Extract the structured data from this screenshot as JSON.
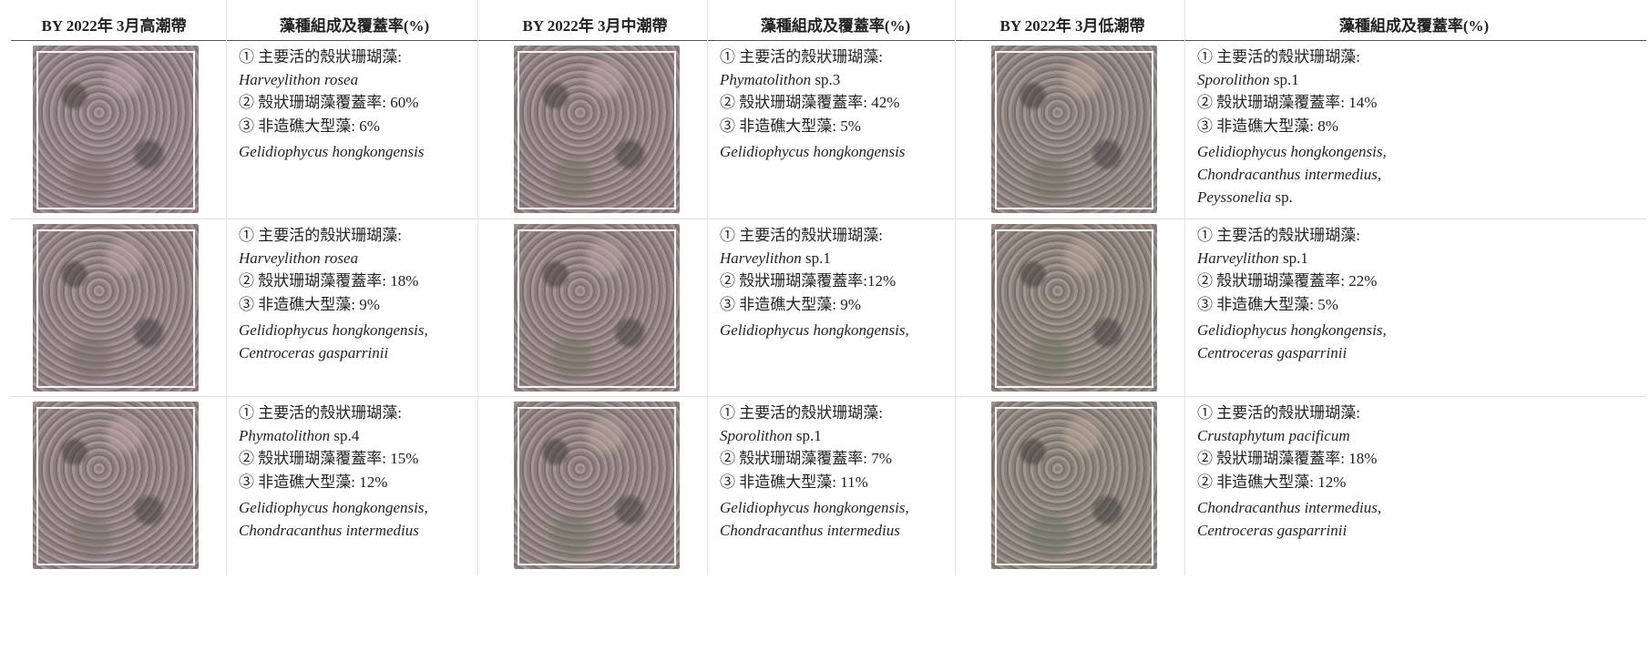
{
  "panels": [
    {
      "header": {
        "site": "BY 2022年 3月高潮帶",
        "composition": "藻種組成及覆蓋率(%)"
      },
      "rows": [
        {
          "dominant_label": "① 主要活的殼狀珊瑚藻:",
          "dominant_species": [
            "Harveylithon rosea"
          ],
          "coverage": "② 殼狀珊瑚藻覆蓋率: 60%",
          "macroalgae": "③ 非造礁大型藻: 6%",
          "species": [
            [
              "Gelidiophycus hongkongensis"
            ]
          ]
        },
        {
          "dominant_label": "① 主要活的殼狀珊瑚藻:",
          "dominant_species": [
            "Harveylithon rosea"
          ],
          "coverage": "② 殼狀珊瑚藻覆蓋率: 18%",
          "macroalgae": "③ 非造礁大型藻: 9%",
          "species": [
            [
              "Gelidiophycus hongkongensis,"
            ],
            [
              "Centroceras gasparrinii"
            ]
          ]
        },
        {
          "dominant_label": "① 主要活的殼狀珊瑚藻:",
          "dominant_species": [
            "Phymatolithon",
            "sp.4"
          ],
          "coverage": "② 殼狀珊瑚藻覆蓋率: 15%",
          "macroalgae": "③ 非造礁大型藻: 12%",
          "species": [
            [
              "Gelidiophycus hongkongensis,"
            ],
            [
              "Chondracanthus intermedius"
            ]
          ]
        }
      ]
    },
    {
      "header": {
        "site": "BY 2022年 3月中潮帶",
        "composition": "藻種組成及覆蓋率(%)"
      },
      "rows": [
        {
          "dominant_label": "① 主要活的殼狀珊瑚藻:",
          "dominant_species": [
            "Phymatolithon",
            "sp.3"
          ],
          "coverage": "② 殼狀珊瑚藻覆蓋率: 42%",
          "macroalgae": "③ 非造礁大型藻: 5%",
          "species": [
            [
              "Gelidiophycus hongkongensis"
            ]
          ]
        },
        {
          "dominant_label": "① 主要活的殼狀珊瑚藻:",
          "dominant_species": [
            "Harveylithon",
            "sp.1"
          ],
          "coverage": "② 殼狀珊瑚藻覆蓋率:12%",
          "macroalgae": "③ 非造礁大型藻: 9%",
          "species": [
            [
              "Gelidiophycus hongkongensis,"
            ]
          ]
        },
        {
          "dominant_label": "① 主要活的殼狀珊瑚藻:",
          "dominant_species": [
            "Sporolithon",
            "sp.1"
          ],
          "coverage": "② 殼狀珊瑚藻覆蓋率: 7%",
          "macroalgae": "③ 非造礁大型藻: 11%",
          "species": [
            [
              "Gelidiophycus hongkongensis,"
            ],
            [
              "Chondracanthus intermedius"
            ]
          ]
        }
      ]
    },
    {
      "header": {
        "site": "BY 2022年 3月低潮帶",
        "composition": "藻種組成及覆蓋率(%)"
      },
      "rows": [
        {
          "dominant_label": "① 主要活的殼狀珊瑚藻:",
          "dominant_species": [
            "Sporolithon",
            "sp.1"
          ],
          "coverage": "② 殼狀珊瑚藻覆蓋率: 14%",
          "macroalgae": "③ 非造礁大型藻: 8%",
          "species": [
            [
              "Gelidiophycus hongkongensis,"
            ],
            [
              "Chondracanthus intermedius,"
            ],
            [
              "Peyssonelia",
              "sp."
            ]
          ]
        },
        {
          "dominant_label": "① 主要活的殼狀珊瑚藻:",
          "dominant_species": [
            "Harveylithon",
            "sp.1"
          ],
          "coverage": "② 殼狀珊瑚藻覆蓋率: 22%",
          "macroalgae": "③ 非造礁大型藻: 5%",
          "species": [
            [
              "Gelidiophycus hongkongensis,"
            ],
            [
              "Centroceras gasparrinii"
            ]
          ]
        },
        {
          "dominant_label": "① 主要活的殼狀珊瑚藻:",
          "dominant_species": [
            "Crustaphytum pacificum"
          ],
          "coverage": "② 殼狀珊瑚藻覆蓋率: 18%",
          "macroalgae": "② 非造礁大型藻: 12%",
          "species": [
            [
              "Chondracanthus intermedius,"
            ],
            [
              "Centroceras gasparrinii"
            ]
          ]
        }
      ]
    }
  ]
}
